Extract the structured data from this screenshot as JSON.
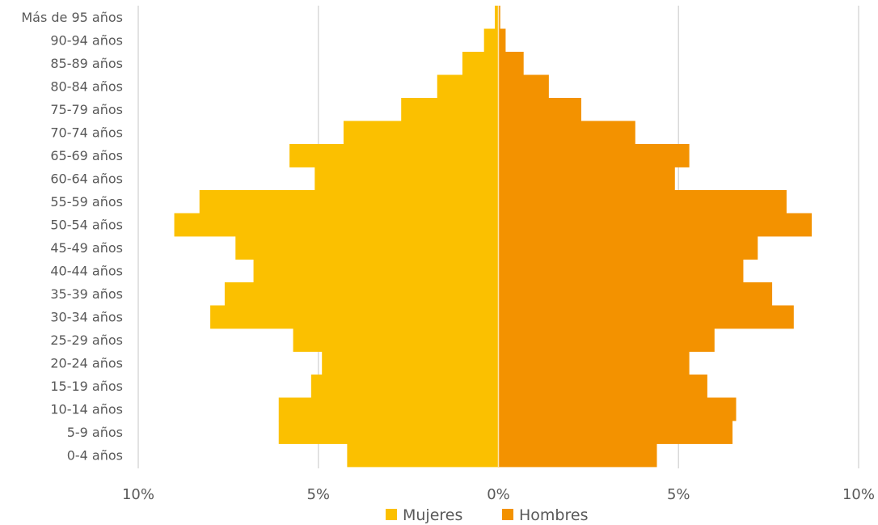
{
  "chart_data": {
    "type": "bar",
    "orientation": "horizontal",
    "layout": "population-pyramid",
    "categories": [
      "0-4 años",
      "5-9 años",
      "10-14 años",
      "15-19 años",
      "20-24 años",
      "25-29 años",
      "30-34 años",
      "35-39 años",
      "40-44 años",
      "45-49 años",
      "50-54 años",
      "55-59 años",
      "60-64 años",
      "65-69 años",
      "70-74 años",
      "75-79 años",
      "80-84 años",
      "85-89 años",
      "90-94 años",
      "Más de 95 años"
    ],
    "series": [
      {
        "name": "Mujeres",
        "color": "#FBC000",
        "side": "left",
        "values": [
          4.2,
          6.1,
          6.1,
          5.2,
          4.9,
          5.7,
          8.0,
          7.6,
          6.8,
          7.3,
          9.0,
          8.3,
          5.1,
          5.8,
          4.3,
          2.7,
          1.7,
          1.0,
          0.4,
          0.1
        ]
      },
      {
        "name": "Hombres",
        "color": "#F39200",
        "side": "right",
        "values": [
          4.4,
          6.5,
          6.6,
          5.8,
          5.3,
          6.0,
          8.2,
          7.6,
          6.8,
          7.2,
          8.7,
          8.0,
          4.9,
          5.3,
          3.8,
          2.3,
          1.4,
          0.7,
          0.2,
          0.05
        ]
      }
    ],
    "xlim": [
      -10,
      10
    ],
    "xticks": [
      -10,
      -5,
      0,
      5,
      10
    ],
    "xtick_labels": [
      "10%",
      "5%",
      "0%",
      "5%",
      "10%"
    ],
    "grid": "vertical",
    "legend": "bottom-center"
  }
}
